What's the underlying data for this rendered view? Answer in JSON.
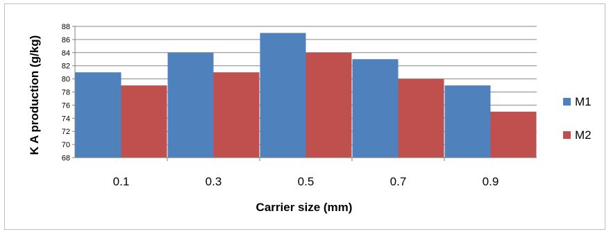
{
  "chart_data": {
    "type": "bar",
    "categories": [
      "0.1",
      "0.3",
      "0.5",
      "0.7",
      "0.9"
    ],
    "series": [
      {
        "name": "M1",
        "color": "#4f81bd",
        "values": [
          81,
          84,
          87,
          83,
          79
        ]
      },
      {
        "name": "M2",
        "color": "#c0504d",
        "values": [
          79,
          81,
          84,
          80,
          75
        ]
      }
    ],
    "xlabel": "Carrier size (mm)",
    "ylabel": "K  A production (g/kg)",
    "ylim": [
      68,
      88
    ],
    "ytick_step": 2,
    "yticks": [
      "68",
      "70",
      "72",
      "74",
      "76",
      "78",
      "80",
      "82",
      "84",
      "86",
      "88"
    ],
    "grid": true,
    "legend_position": "right"
  }
}
